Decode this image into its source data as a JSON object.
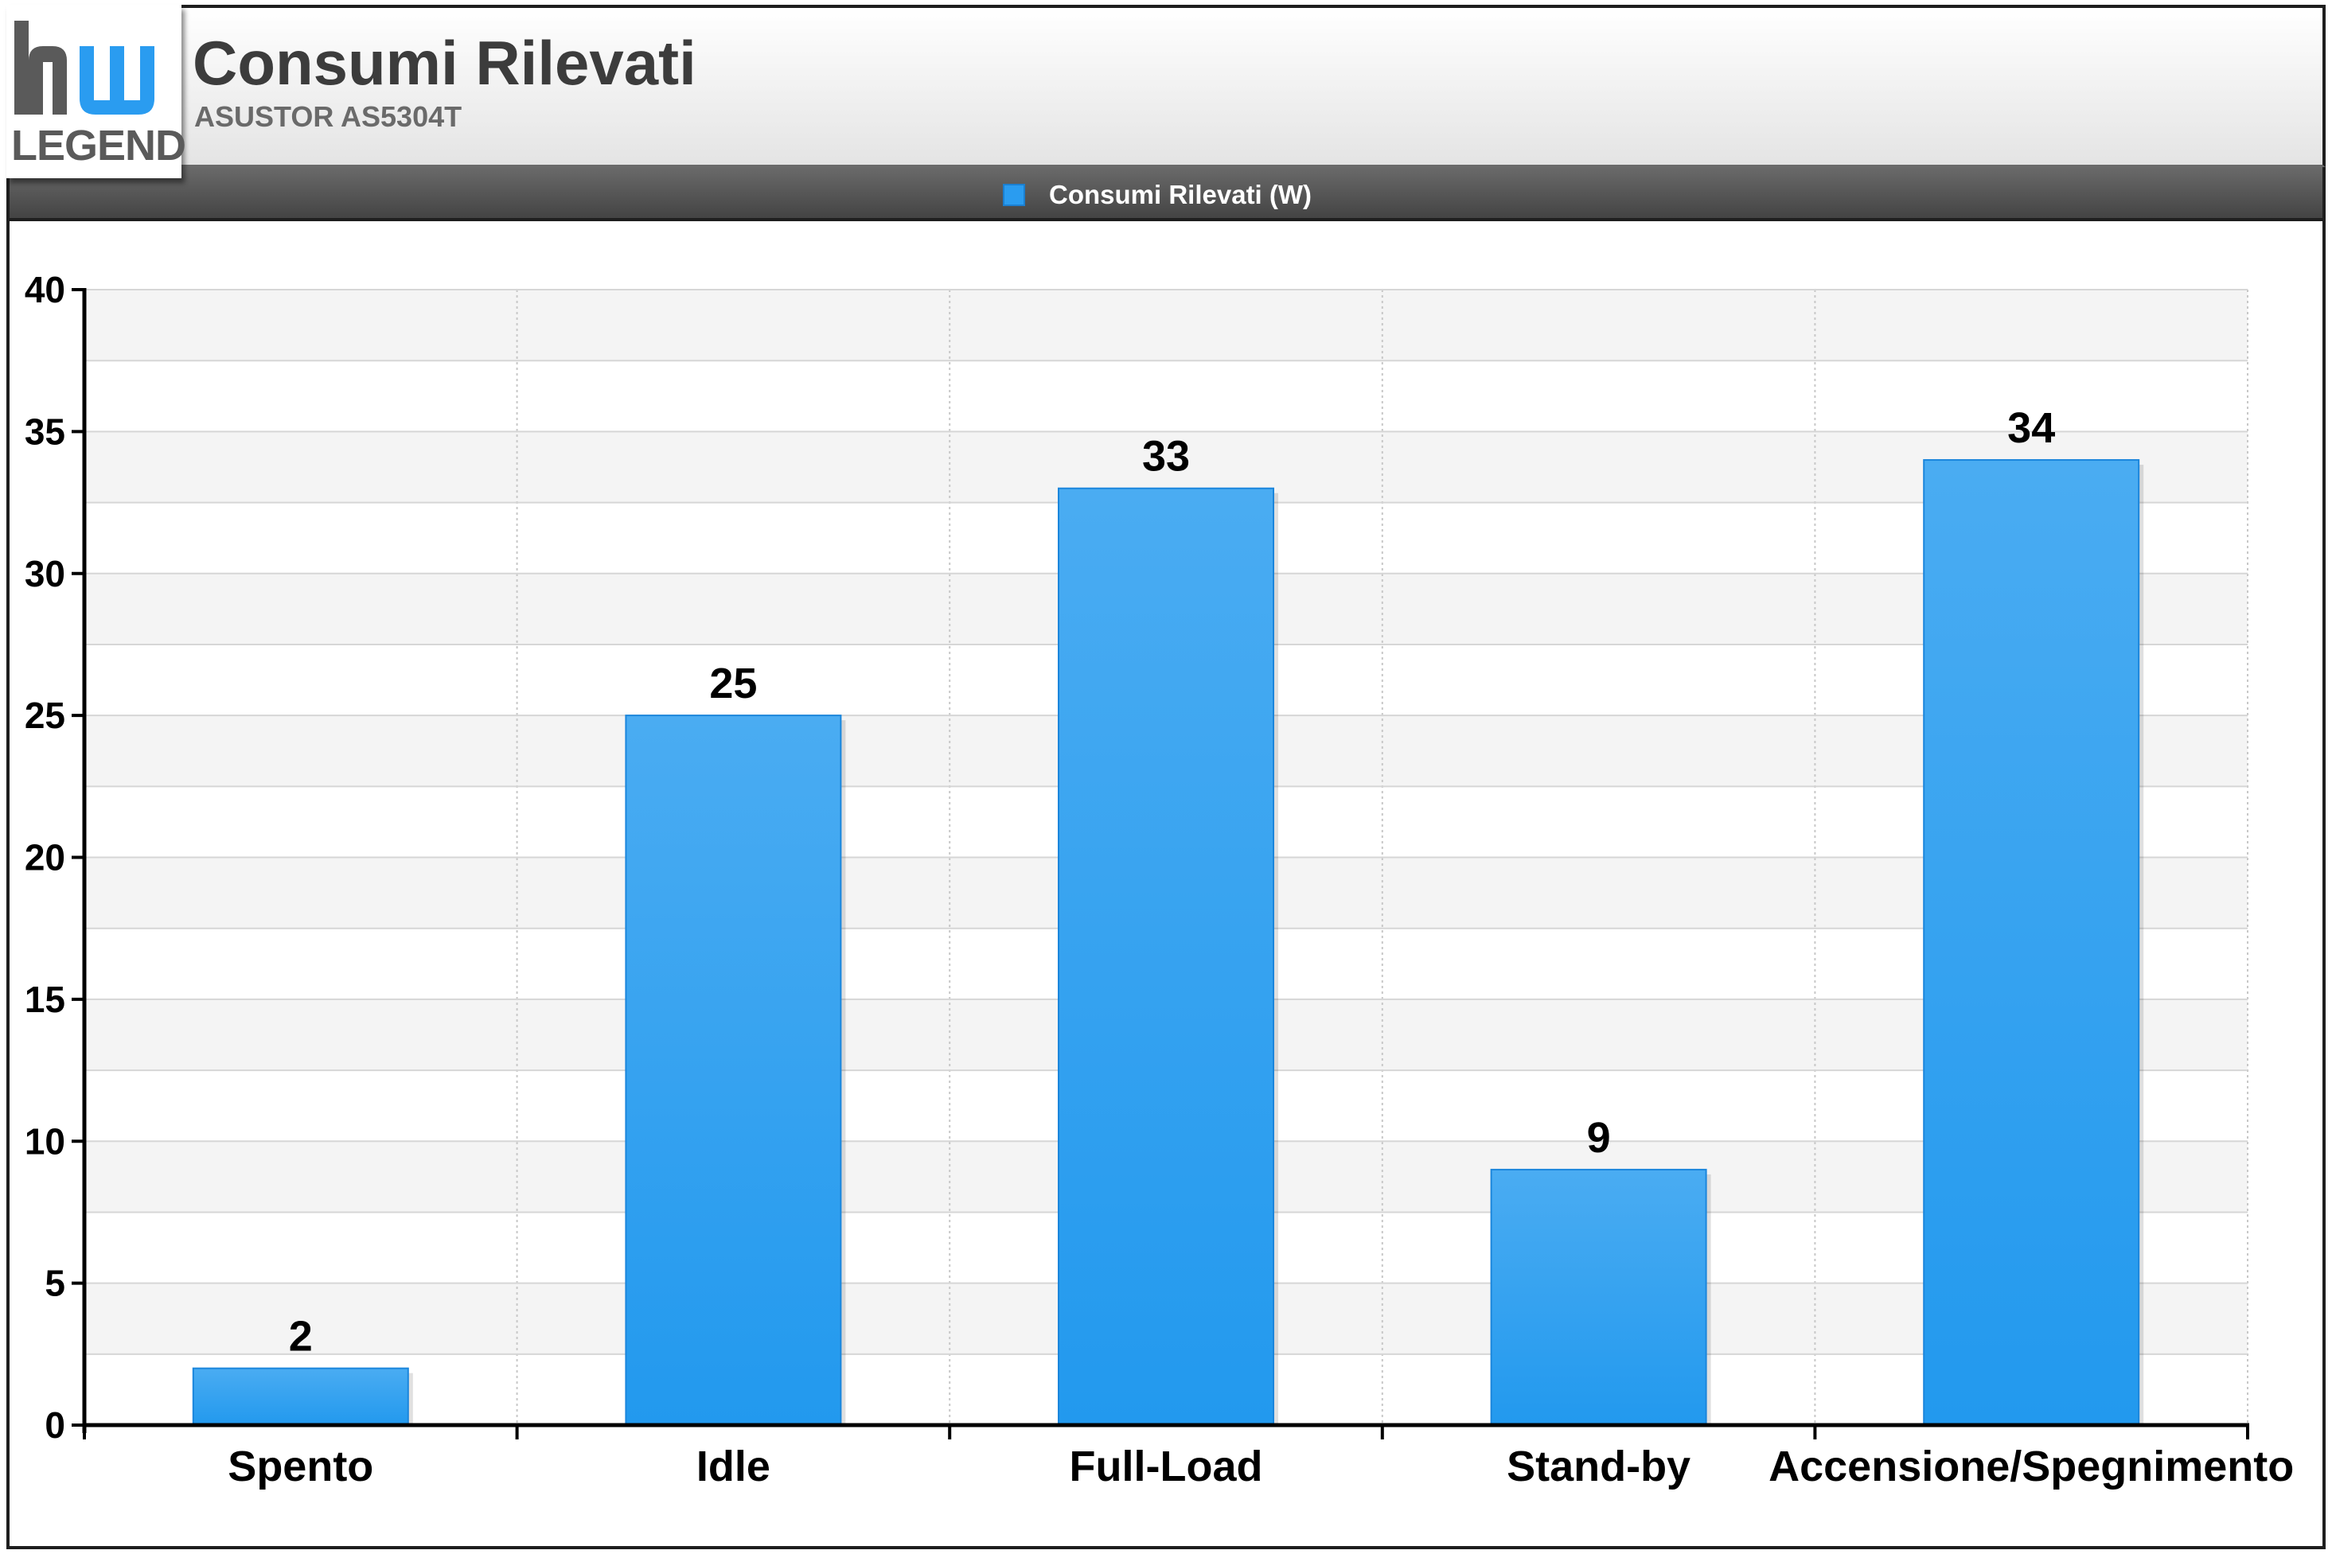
{
  "header": {
    "logo_text": "LEGEND",
    "title": "Consumi Rilevati",
    "subtitle": "ASUSTOR AS5304T"
  },
  "legend": {
    "label": "Consumi Rilevati (W)",
    "color": "#2a9cf0"
  },
  "chart_data": {
    "type": "bar",
    "title": "Consumi Rilevati",
    "subtitle": "ASUSTOR AS5304T",
    "xlabel": "",
    "ylabel": "",
    "categories": [
      "Spento",
      "Idle",
      "Full-Load",
      "Stand-by",
      "Accensione/Spegnimento"
    ],
    "series": [
      {
        "name": "Consumi Rilevati (W)",
        "values": [
          2,
          25,
          33,
          9,
          34
        ]
      }
    ],
    "ylim": [
      0,
      40
    ],
    "yticks": [
      "0",
      "5",
      "10",
      "15",
      "20",
      "25",
      "30",
      "35",
      "40"
    ],
    "data_labels": [
      "2",
      "25",
      "33",
      "9",
      "34"
    ],
    "grid": true,
    "legend_position": "top-center",
    "bar_color": "#2a9cf0"
  }
}
